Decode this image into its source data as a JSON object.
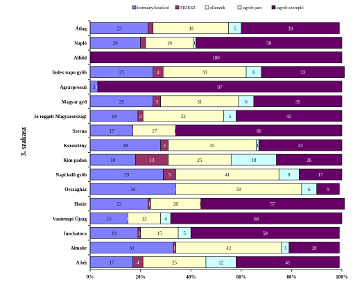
{
  "chart_data": {
    "type": "bar",
    "orientation": "horizontal",
    "stacked": true,
    "percent": true,
    "title": "",
    "xlabel": "",
    "ylabel": "3. szakasz",
    "xlim": [
      0,
      100
    ],
    "x_ticks": [
      "0%",
      "20%",
      "40%",
      "60%",
      "80%",
      "100%"
    ],
    "legend_position": "top",
    "grid": false,
    "categories": [
      "Átlag",
      "Napló",
      "Alföld",
      "Index napo győb",
      "Agrárpresszi",
      "Magyar gyd",
      "Jó reggelt Magyarország!",
      "Szerna",
      "Keresztény",
      "Kim padon",
      "Napi kelő győb",
      "Országház",
      "Határ",
      "Vasárnapi Újság",
      "Inochatora",
      "Almahr",
      "A héi"
    ],
    "series": [
      {
        "name": "kormány/koalíció",
        "color": "#8080ff",
        "values": [
          23,
          20,
          0,
          25,
          3,
          25,
          19,
          17,
          28,
          18,
          29,
          34,
          23,
          15,
          19,
          33,
          17
        ]
      },
      {
        "name": "FIDESZ",
        "color": "#993366",
        "values": [
          2,
          2,
          0,
          4,
          0,
          3,
          2,
          0,
          3,
          13,
          5,
          0,
          1,
          0,
          1,
          1,
          4
        ]
      },
      {
        "name": "ellenzék",
        "color": "#ffffcc",
        "values": [
          30,
          19,
          0,
          33,
          0,
          31,
          32,
          17,
          35,
          25,
          41,
          50,
          20,
          13,
          15,
          42,
          25
        ]
      },
      {
        "name": "egyéb párt",
        "color": "#ccffff",
        "values": [
          5,
          1,
          0,
          6,
          0,
          6,
          5,
          0,
          1,
          18,
          8,
          6,
          0,
          4,
          5,
          3,
          12
        ]
      },
      {
        "name": "egyéb szereplő",
        "color": "#660066",
        "values": [
          39,
          58,
          100,
          33,
          97,
          35,
          42,
          66,
          33,
          26,
          17,
          9,
          57,
          68,
          59,
          20,
          41
        ]
      }
    ],
    "data_labels": [
      [
        "23",
        "",
        "30",
        "5",
        "39"
      ],
      [
        "20",
        "",
        "19",
        "1",
        "58"
      ],
      [
        "",
        "",
        "",
        "",
        "100"
      ],
      [
        "25",
        "4",
        "33",
        "6",
        "33"
      ],
      [
        "3",
        "0",
        "",
        "",
        "97"
      ],
      [
        "25",
        "3",
        "31",
        "6",
        "35"
      ],
      [
        "19",
        "2",
        "32",
        "5",
        "42"
      ],
      [
        "17",
        "0",
        "17",
        "0",
        "66"
      ],
      [
        "28",
        "3",
        "35",
        "1",
        "33"
      ],
      [
        "18",
        "13",
        "25",
        "18",
        "26"
      ],
      [
        "29",
        "5",
        "41",
        "8",
        "17"
      ],
      [
        "34",
        "0",
        "50",
        "6",
        "9"
      ],
      [
        "23",
        "1",
        "20",
        "0",
        "57"
      ],
      [
        "15",
        "0",
        "13",
        "4",
        "68"
      ],
      [
        "19",
        "1",
        "15",
        "5",
        "59"
      ],
      [
        "33",
        "1",
        "42",
        "3",
        "20"
      ],
      [
        "17",
        "4",
        "25",
        "12",
        "41"
      ]
    ]
  }
}
